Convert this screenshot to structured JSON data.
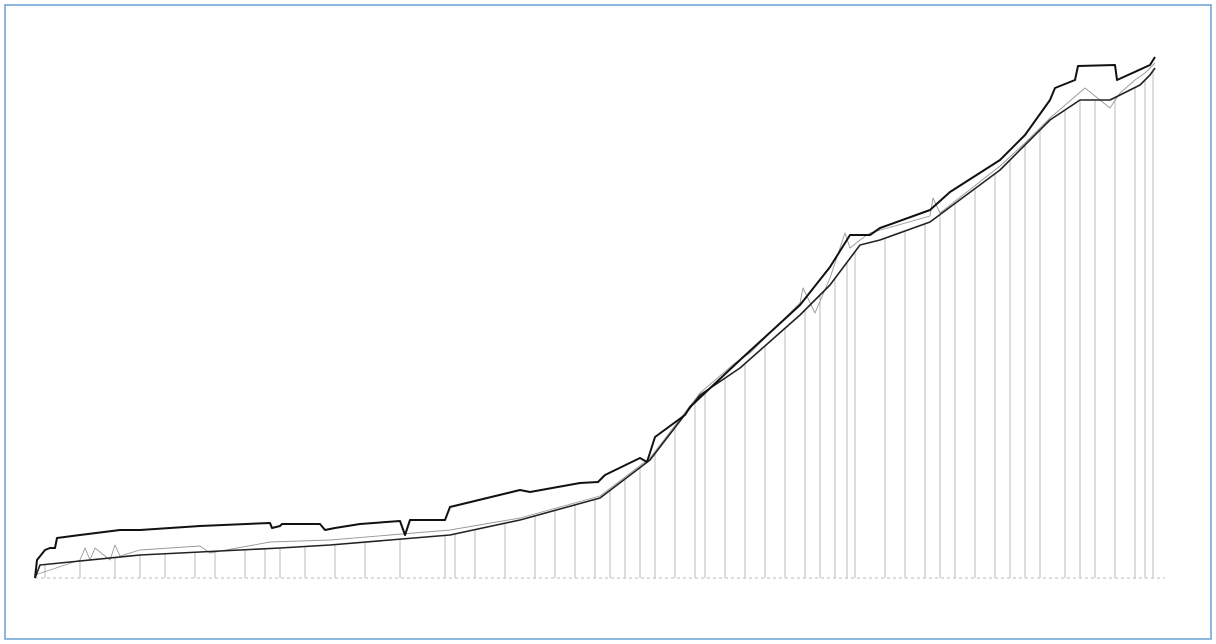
{
  "chart_data": {
    "type": "line",
    "xlim": [
      0,
      1120
    ],
    "ylim": [
      0,
      521
    ],
    "series": [
      {
        "color": "#111111",
        "x": [
          0,
          2,
          10,
          15,
          20,
          22,
          45,
          85,
          105,
          165,
          235,
          237,
          245,
          247,
          285,
          290,
          300,
          325,
          365,
          370,
          375,
          410,
          415,
          485,
          495,
          545,
          563,
          570,
          605,
          612,
          620,
          650,
          655,
          705,
          765,
          795,
          815,
          835,
          845,
          895,
          915,
          965,
          990,
          1015,
          1020,
          1040,
          1043,
          1080,
          1082,
          1115,
          1120
        ],
        "values": [
          0,
          18,
          28,
          30,
          30,
          40,
          43,
          48,
          48,
          52,
          55,
          50,
          52,
          54,
          54,
          48,
          50,
          54,
          57,
          43,
          58,
          58,
          71,
          88,
          86,
          95,
          96,
          103,
          120,
          116,
          141,
          163,
          171,
          218,
          273,
          311,
          343,
          343,
          350,
          368,
          386,
          418,
          443,
          478,
          490,
          498,
          512,
          513,
          498,
          513,
          521
        ]
      },
      {
        "color": "#222222",
        "x": [
          0,
          5,
          25,
          105,
          245,
          295,
          415,
          485,
          565,
          615,
          665,
          705,
          765,
          795,
          825,
          845,
          895,
          965,
          1015,
          1045,
          1075,
          1105,
          1115,
          1120
        ],
        "values": [
          0,
          13,
          15,
          23,
          30,
          33,
          43,
          58,
          80,
          118,
          183,
          210,
          263,
          293,
          333,
          338,
          356,
          408,
          458,
          478,
          478,
          493,
          503,
          510
        ]
      },
      {
        "color": "#999999",
        "x": [
          0,
          45,
          50,
          55,
          60,
          75,
          80,
          85,
          105,
          165,
          175,
          235,
          295,
          415,
          485,
          565,
          615,
          665,
          700,
          715,
          765,
          768,
          780,
          795,
          810,
          815,
          825,
          835,
          895,
          898,
          905,
          965,
          990,
          1015,
          1050,
          1065,
          1075,
          1085,
          1100,
          1110,
          1120
        ],
        "values": [
          3,
          18,
          30,
          18,
          30,
          18,
          33,
          22,
          28,
          32,
          25,
          36,
          38,
          48,
          60,
          82,
          120,
          185,
          215,
          225,
          275,
          290,
          265,
          300,
          345,
          330,
          338,
          345,
          362,
          380,
          365,
          412,
          435,
          460,
          490,
          478,
          470,
          485,
          498,
          505,
          515
        ]
      }
    ],
    "drops": {
      "color": "#bbbbbb",
      "x": [
        10,
        45,
        80,
        105,
        130,
        160,
        180,
        210,
        230,
        245,
        270,
        300,
        330,
        365,
        410,
        420,
        440,
        470,
        500,
        520,
        540,
        560,
        575,
        590,
        605,
        620,
        640,
        660,
        670,
        690,
        710,
        730,
        750,
        770,
        785,
        800,
        812,
        820,
        850,
        870,
        890,
        905,
        920,
        940,
        960,
        975,
        990,
        1005,
        1030,
        1045,
        1060,
        1080,
        1100,
        1110,
        1118
      ],
      "values": [
        14,
        17,
        20.5,
        23,
        24,
        26,
        27,
        28,
        29,
        30,
        31.5,
        33.5,
        36,
        39,
        42.5,
        44,
        48,
        55,
        62,
        68,
        73,
        79,
        88,
        99,
        110,
        124,
        150,
        176,
        186,
        200,
        214,
        232,
        250,
        268,
        283,
        300,
        316,
        326,
        340,
        347,
        354,
        363,
        374,
        389,
        404,
        418,
        433,
        448,
        468,
        478,
        478,
        480,
        490,
        498,
        507
      ]
    }
  }
}
